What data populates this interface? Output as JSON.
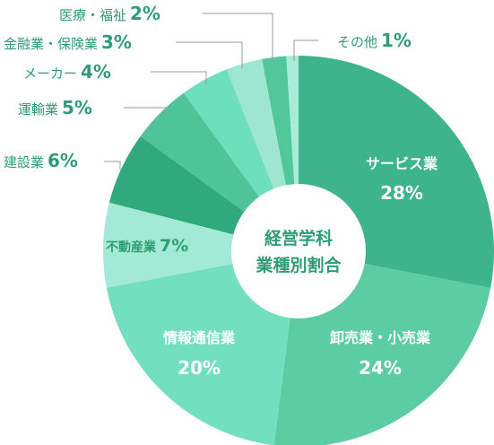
{
  "chart_data": {
    "type": "pie",
    "center_label_line1": "経営学科",
    "center_label_line2": "業種別割合",
    "slices": [
      {
        "name": "サービス業",
        "value": 28,
        "pct_label": "28%",
        "color": "#3db48b"
      },
      {
        "name": "卸売業・小売業",
        "value": 24,
        "pct_label": "24%",
        "color": "#5ccca3"
      },
      {
        "name": "情報通信業",
        "value": 20,
        "pct_label": "20%",
        "color": "#72e0be"
      },
      {
        "name": "不動産業",
        "value": 7,
        "pct_label": "7%",
        "color": "#a3ead6"
      },
      {
        "name": "建設業",
        "value": 6,
        "pct_label": "6%",
        "color": "#30aa7c"
      },
      {
        "name": "運輸業",
        "value": 5,
        "pct_label": "5%",
        "color": "#4fc499"
      },
      {
        "name": "メーカー",
        "value": 4,
        "pct_label": "4%",
        "color": "#6de0bb"
      },
      {
        "name": "金融業・保険業",
        "value": 3,
        "pct_label": "3%",
        "color": "#9ee6cf"
      },
      {
        "name": "医療・福祉",
        "value": 2,
        "pct_label": "2%",
        "color": "#52c79c"
      },
      {
        "name": "その他",
        "value": 1,
        "pct_label": "1%",
        "color": "#a8ecd8"
      }
    ]
  }
}
